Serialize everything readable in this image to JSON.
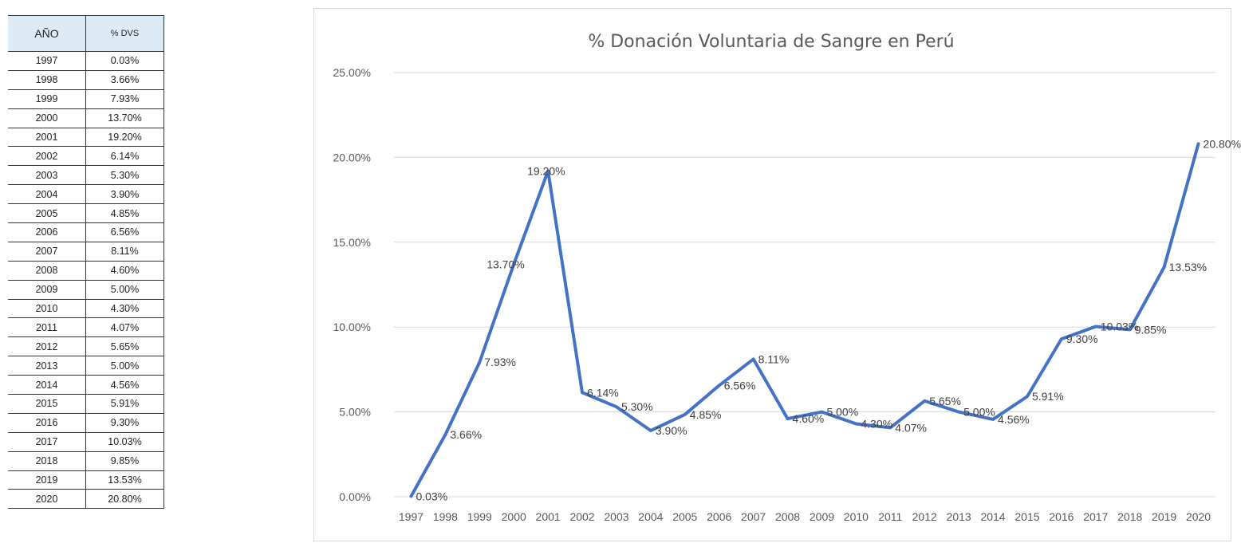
{
  "table": {
    "header_year": "AÑO",
    "header_pct": "% DVS",
    "header_bg": "#ddebf7",
    "rows": [
      {
        "year": "1997",
        "pct": "0.03%"
      },
      {
        "year": "1998",
        "pct": "3.66%"
      },
      {
        "year": "1999",
        "pct": "7.93%"
      },
      {
        "year": "2000",
        "pct": "13.70%"
      },
      {
        "year": "2001",
        "pct": "19.20%"
      },
      {
        "year": "2002",
        "pct": "6.14%"
      },
      {
        "year": "2003",
        "pct": "5.30%"
      },
      {
        "year": "2004",
        "pct": "3.90%"
      },
      {
        "year": "2005",
        "pct": "4.85%"
      },
      {
        "year": "2006",
        "pct": "6.56%"
      },
      {
        "year": "2007",
        "pct": "8.11%"
      },
      {
        "year": "2008",
        "pct": "4.60%"
      },
      {
        "year": "2009",
        "pct": "5.00%"
      },
      {
        "year": "2010",
        "pct": "4.30%"
      },
      {
        "year": "2011",
        "pct": "4.07%"
      },
      {
        "year": "2012",
        "pct": "5.65%"
      },
      {
        "year": "2013",
        "pct": "5.00%"
      },
      {
        "year": "2014",
        "pct": "4.56%"
      },
      {
        "year": "2015",
        "pct": "5.91%"
      },
      {
        "year": "2016",
        "pct": "9.30%"
      },
      {
        "year": "2017",
        "pct": "10.03%"
      },
      {
        "year": "2018",
        "pct": "9.85%"
      },
      {
        "year": "2019",
        "pct": "13.53%"
      },
      {
        "year": "2020",
        "pct": "20.80%"
      }
    ]
  },
  "chart_data": {
    "type": "line",
    "title": "% Donación Voluntaria de Sangre en Perú",
    "xlabel": "",
    "ylabel": "",
    "categories": [
      "1997",
      "1998",
      "1999",
      "2000",
      "2001",
      "2002",
      "2003",
      "2004",
      "2005",
      "2006",
      "2007",
      "2008",
      "2009",
      "2010",
      "2011",
      "2012",
      "2013",
      "2014",
      "2015",
      "2016",
      "2017",
      "2018",
      "2019",
      "2020"
    ],
    "series": [
      {
        "values": [
          0.03,
          3.66,
          7.93,
          13.7,
          19.2,
          6.14,
          5.3,
          3.9,
          4.85,
          6.56,
          8.11,
          4.6,
          5.0,
          4.3,
          4.07,
          5.65,
          5.0,
          4.56,
          5.91,
          9.3,
          10.03,
          9.85,
          13.53,
          20.8
        ],
        "labels": [
          "0.03%",
          "3.66%",
          "7.93%",
          "13.70%",
          "19.20%",
          "6.14%",
          "5.30%",
          "3.90%",
          "4.85%",
          "6.56%",
          "8.11%",
          "4.60%",
          "5.00%",
          "4.30%",
          "4.07%",
          "5.65%",
          "5.00%",
          "4.56%",
          "5.91%",
          "9.30%",
          "10.03%",
          "9.85%",
          "13.53%",
          "20.80%"
        ]
      }
    ],
    "yticks": [
      "0.00%",
      "5.00%",
      "10.00%",
      "15.00%",
      "20.00%",
      "25.00%"
    ],
    "ylim": [
      0,
      25
    ],
    "grid": true,
    "legend": "none",
    "colors": {
      "line": "#4472c4",
      "grid": "#d9d9d9",
      "text": "#595959"
    }
  }
}
